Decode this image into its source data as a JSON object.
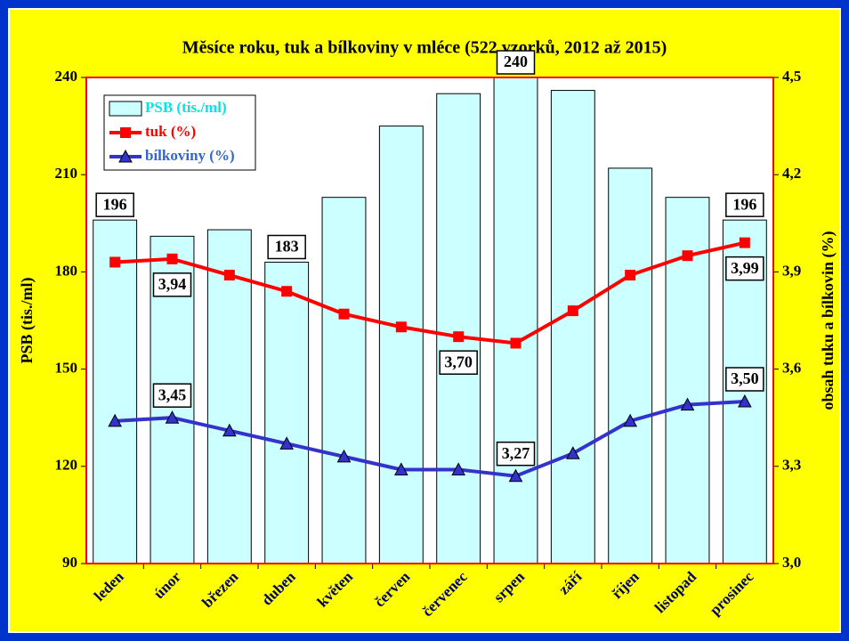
{
  "chart_data": {
    "type": "bar",
    "title": "Měsíce roku, tuk a bílkoviny v mléce (522 vzorků, 2012 až 2015)",
    "ylabel": "PSB (tis./ml)",
    "y2label": "obsah tuku a bílkovin  (%)",
    "categories": [
      "leden",
      "únor",
      "březen",
      "duben",
      "květen",
      "červen",
      "červenec",
      "srpen",
      "září",
      "říjen",
      "listopad",
      "prosinec"
    ],
    "series": [
      {
        "name": "PSB (tis./ml)",
        "type": "bar",
        "color": "#ccffff",
        "values": [
          196,
          191,
          193,
          183,
          203,
          225,
          235,
          240,
          236,
          212,
          203,
          196
        ],
        "value_labels": [
          "196",
          null,
          null,
          "183",
          null,
          null,
          null,
          "240",
          null,
          null,
          null,
          "196"
        ]
      },
      {
        "name": "tuk (%)",
        "type": "line",
        "axis": "y2",
        "color": "#ff0000",
        "marker": "square",
        "values": [
          3.93,
          3.94,
          3.89,
          3.84,
          3.77,
          3.73,
          3.7,
          3.68,
          3.78,
          3.89,
          3.95,
          3.99
        ],
        "value_labels": [
          null,
          "3,94",
          null,
          null,
          null,
          null,
          "3,70",
          null,
          null,
          null,
          null,
          "3,99"
        ]
      },
      {
        "name": "bílkoviny (%)",
        "type": "line",
        "axis": "y2",
        "color": "#3333cc",
        "marker": "triangle",
        "values": [
          3.44,
          3.45,
          3.41,
          3.37,
          3.33,
          3.29,
          3.29,
          3.27,
          3.34,
          3.44,
          3.49,
          3.5
        ],
        "value_labels": [
          null,
          "3,45",
          null,
          null,
          null,
          null,
          null,
          "3,27",
          null,
          null,
          null,
          "3,50"
        ]
      }
    ],
    "ylim": [
      90,
      240
    ],
    "yticks": [
      90,
      120,
      150,
      180,
      210,
      240
    ],
    "y2lim": [
      3.0,
      4.5
    ],
    "y2ticks": [
      {
        "value": 3.0,
        "label": "3,0"
      },
      {
        "value": 3.3,
        "label": "3,3"
      },
      {
        "value": 3.6,
        "label": "3,6"
      },
      {
        "value": 3.9,
        "label": "3,9"
      },
      {
        "value": 4.2,
        "label": "4,2"
      },
      {
        "value": 4.5,
        "label": "4,5"
      }
    ],
    "legend": "upper left"
  }
}
